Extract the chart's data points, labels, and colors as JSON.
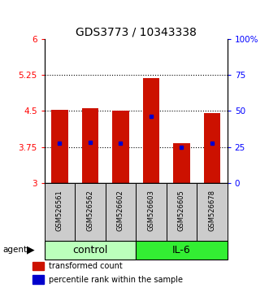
{
  "title": "GDS3773 / 10343338",
  "samples": [
    "GSM526561",
    "GSM526562",
    "GSM526602",
    "GSM526603",
    "GSM526605",
    "GSM526678"
  ],
  "bar_bottoms": [
    3.0,
    3.0,
    3.0,
    3.0,
    3.0,
    3.0
  ],
  "bar_tops": [
    4.52,
    4.55,
    4.5,
    5.19,
    3.83,
    4.46
  ],
  "percentile_values": [
    3.83,
    3.85,
    3.82,
    4.38,
    3.74,
    3.82
  ],
  "bar_color": "#cc1100",
  "percentile_color": "#0000cc",
  "ylim_left": [
    3.0,
    6.0
  ],
  "yticks_left": [
    3.0,
    3.75,
    4.5,
    5.25,
    6.0
  ],
  "ytick_labels_left": [
    "3",
    "3.75",
    "4.5",
    "5.25",
    "6"
  ],
  "yticks_right_pct": [
    0,
    25,
    50,
    75,
    100
  ],
  "ytick_labels_right": [
    "0",
    "25",
    "50",
    "75",
    "100%"
  ],
  "hlines": [
    3.75,
    4.5,
    5.25
  ],
  "groups": [
    {
      "label": "control",
      "samples": [
        0,
        1,
        2
      ],
      "color": "#bbffbb"
    },
    {
      "label": "IL-6",
      "samples": [
        3,
        4,
        5
      ],
      "color": "#33ee33"
    }
  ],
  "agent_label": "agent",
  "legend": [
    {
      "color": "#cc1100",
      "label": "transformed count"
    },
    {
      "color": "#0000cc",
      "label": "percentile rank within the sample"
    }
  ],
  "bar_width": 0.55,
  "title_fontsize": 10,
  "tick_fontsize": 7.5,
  "sample_fontsize": 6,
  "group_fontsize": 9,
  "legend_fontsize": 7
}
